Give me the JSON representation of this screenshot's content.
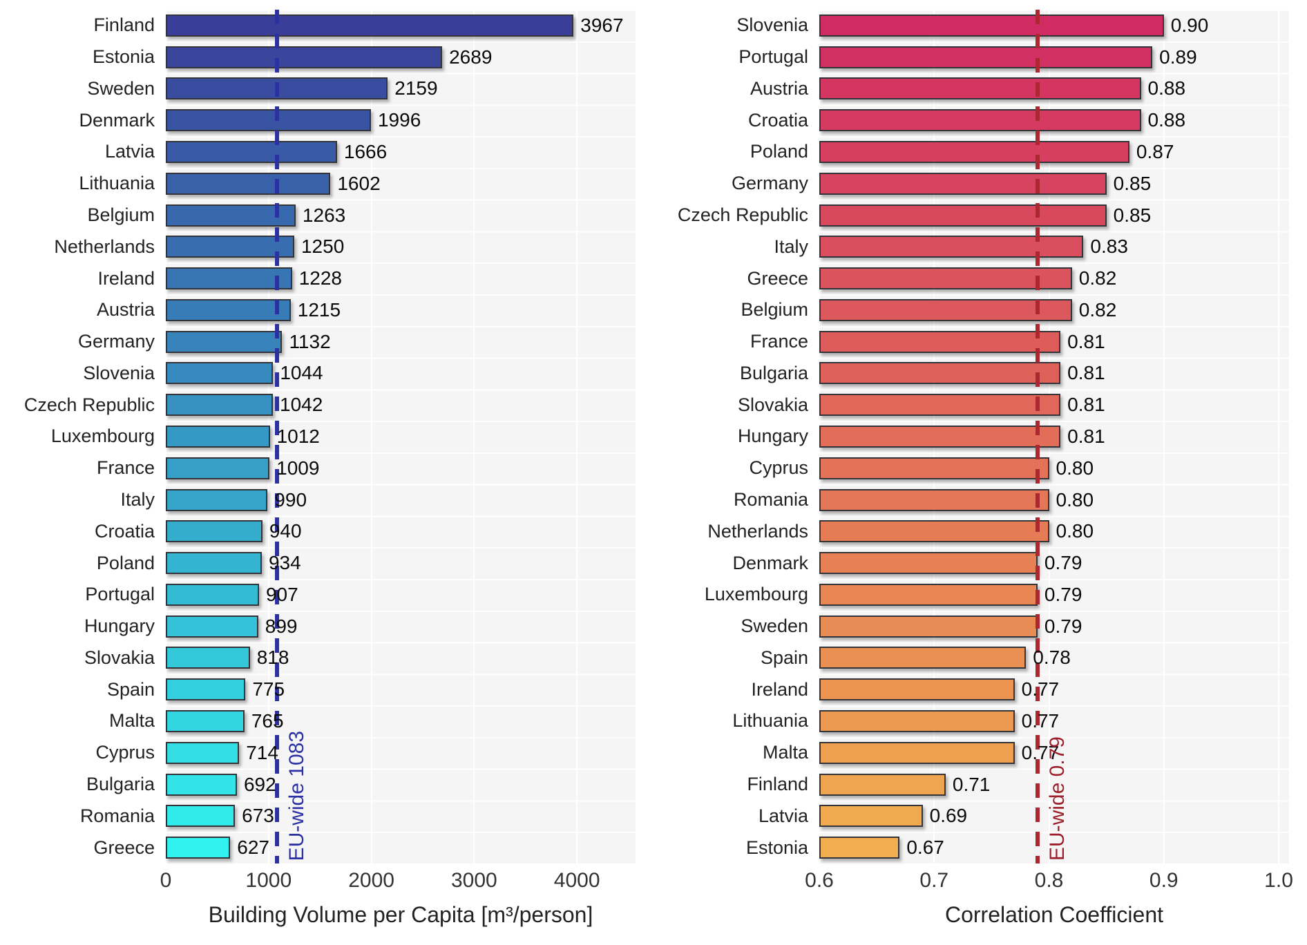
{
  "page": {
    "background": "#ffffff",
    "plot_background": "#f5f5f6"
  },
  "chart_data": [
    {
      "id": "building-volume",
      "type": "bar",
      "orientation": "horizontal",
      "xlabel": "Building Volume per Capita [m³/person]",
      "xlim": [
        0,
        4570
      ],
      "grid": true,
      "legend": "none",
      "xticks": [
        {
          "value": 0,
          "label": "0"
        },
        {
          "value": 1000,
          "label": "1000"
        },
        {
          "value": 2000,
          "label": "2000"
        },
        {
          "value": 3000,
          "label": "3000"
        },
        {
          "value": 4000,
          "label": "4000"
        }
      ],
      "categories": [
        "Finland",
        "Estonia",
        "Sweden",
        "Denmark",
        "Latvia",
        "Lithuania",
        "Belgium",
        "Netherlands",
        "Ireland",
        "Austria",
        "Germany",
        "Slovenia",
        "Czech Republic",
        "Luxembourg",
        "France",
        "Italy",
        "Croatia",
        "Poland",
        "Portugal",
        "Hungary",
        "Slovakia",
        "Spain",
        "Malta",
        "Cyprus",
        "Bulgaria",
        "Romania",
        "Greece"
      ],
      "values": [
        3967,
        2689,
        2159,
        1996,
        1666,
        1602,
        1263,
        1250,
        1228,
        1215,
        1132,
        1044,
        1042,
        1012,
        1009,
        990,
        940,
        934,
        907,
        899,
        818,
        775,
        765,
        714,
        692,
        673,
        627
      ],
      "value_labels": [
        "3967",
        "2689",
        "2159",
        "1996",
        "1666",
        "1602",
        "1263",
        "1250",
        "1228",
        "1215",
        "1132",
        "1044",
        "1042",
        "1012",
        "1009",
        "990",
        "940",
        "934",
        "907",
        "899",
        "818",
        "775",
        "765",
        "714",
        "692",
        "673",
        "627"
      ],
      "bar_color_start": "#3A3E99",
      "bar_color_end": "#31F2EE",
      "refline": {
        "value": 1083,
        "label": "EU-wide 1083",
        "line_color": "#2B31A3",
        "text_color": "#2B31A3"
      }
    },
    {
      "id": "correlation",
      "type": "bar",
      "orientation": "horizontal",
      "xlabel": "Correlation Coefficient",
      "xlim": [
        0.6,
        1.009
      ],
      "grid": true,
      "legend": "none",
      "xticks": [
        {
          "value": 0.6,
          "label": "0.6"
        },
        {
          "value": 0.7,
          "label": "0.7"
        },
        {
          "value": 0.8,
          "label": "0.8"
        },
        {
          "value": 0.9,
          "label": "0.9"
        },
        {
          "value": 1.0,
          "label": "1.0"
        }
      ],
      "categories": [
        "Slovenia",
        "Portugal",
        "Austria",
        "Croatia",
        "Poland",
        "Germany",
        "Czech Republic",
        "Italy",
        "Greece",
        "Belgium",
        "France",
        "Bulgaria",
        "Slovakia",
        "Hungary",
        "Cyprus",
        "Romania",
        "Netherlands",
        "Denmark",
        "Luxembourg",
        "Sweden",
        "Spain",
        "Ireland",
        "Lithuania",
        "Malta",
        "Finland",
        "Latvia",
        "Estonia"
      ],
      "values": [
        0.9,
        0.89,
        0.88,
        0.88,
        0.87,
        0.85,
        0.85,
        0.83,
        0.82,
        0.82,
        0.81,
        0.81,
        0.81,
        0.81,
        0.8,
        0.8,
        0.8,
        0.79,
        0.79,
        0.79,
        0.78,
        0.77,
        0.77,
        0.77,
        0.71,
        0.69,
        0.67
      ],
      "value_labels": [
        "0.90",
        "0.89",
        "0.88",
        "0.88",
        "0.87",
        "0.85",
        "0.85",
        "0.83",
        "0.82",
        "0.82",
        "0.81",
        "0.81",
        "0.81",
        "0.81",
        "0.80",
        "0.80",
        "0.80",
        "0.79",
        "0.79",
        "0.79",
        "0.78",
        "0.77",
        "0.77",
        "0.77",
        "0.71",
        "0.69",
        "0.67"
      ],
      "bar_color_start": "#D12B63",
      "bar_color_end": "#F2AE4E",
      "refline": {
        "value": 0.79,
        "label": "EU-wide 0.79",
        "line_color": "#AB2830",
        "text_color": "#9C1F2B"
      }
    }
  ]
}
